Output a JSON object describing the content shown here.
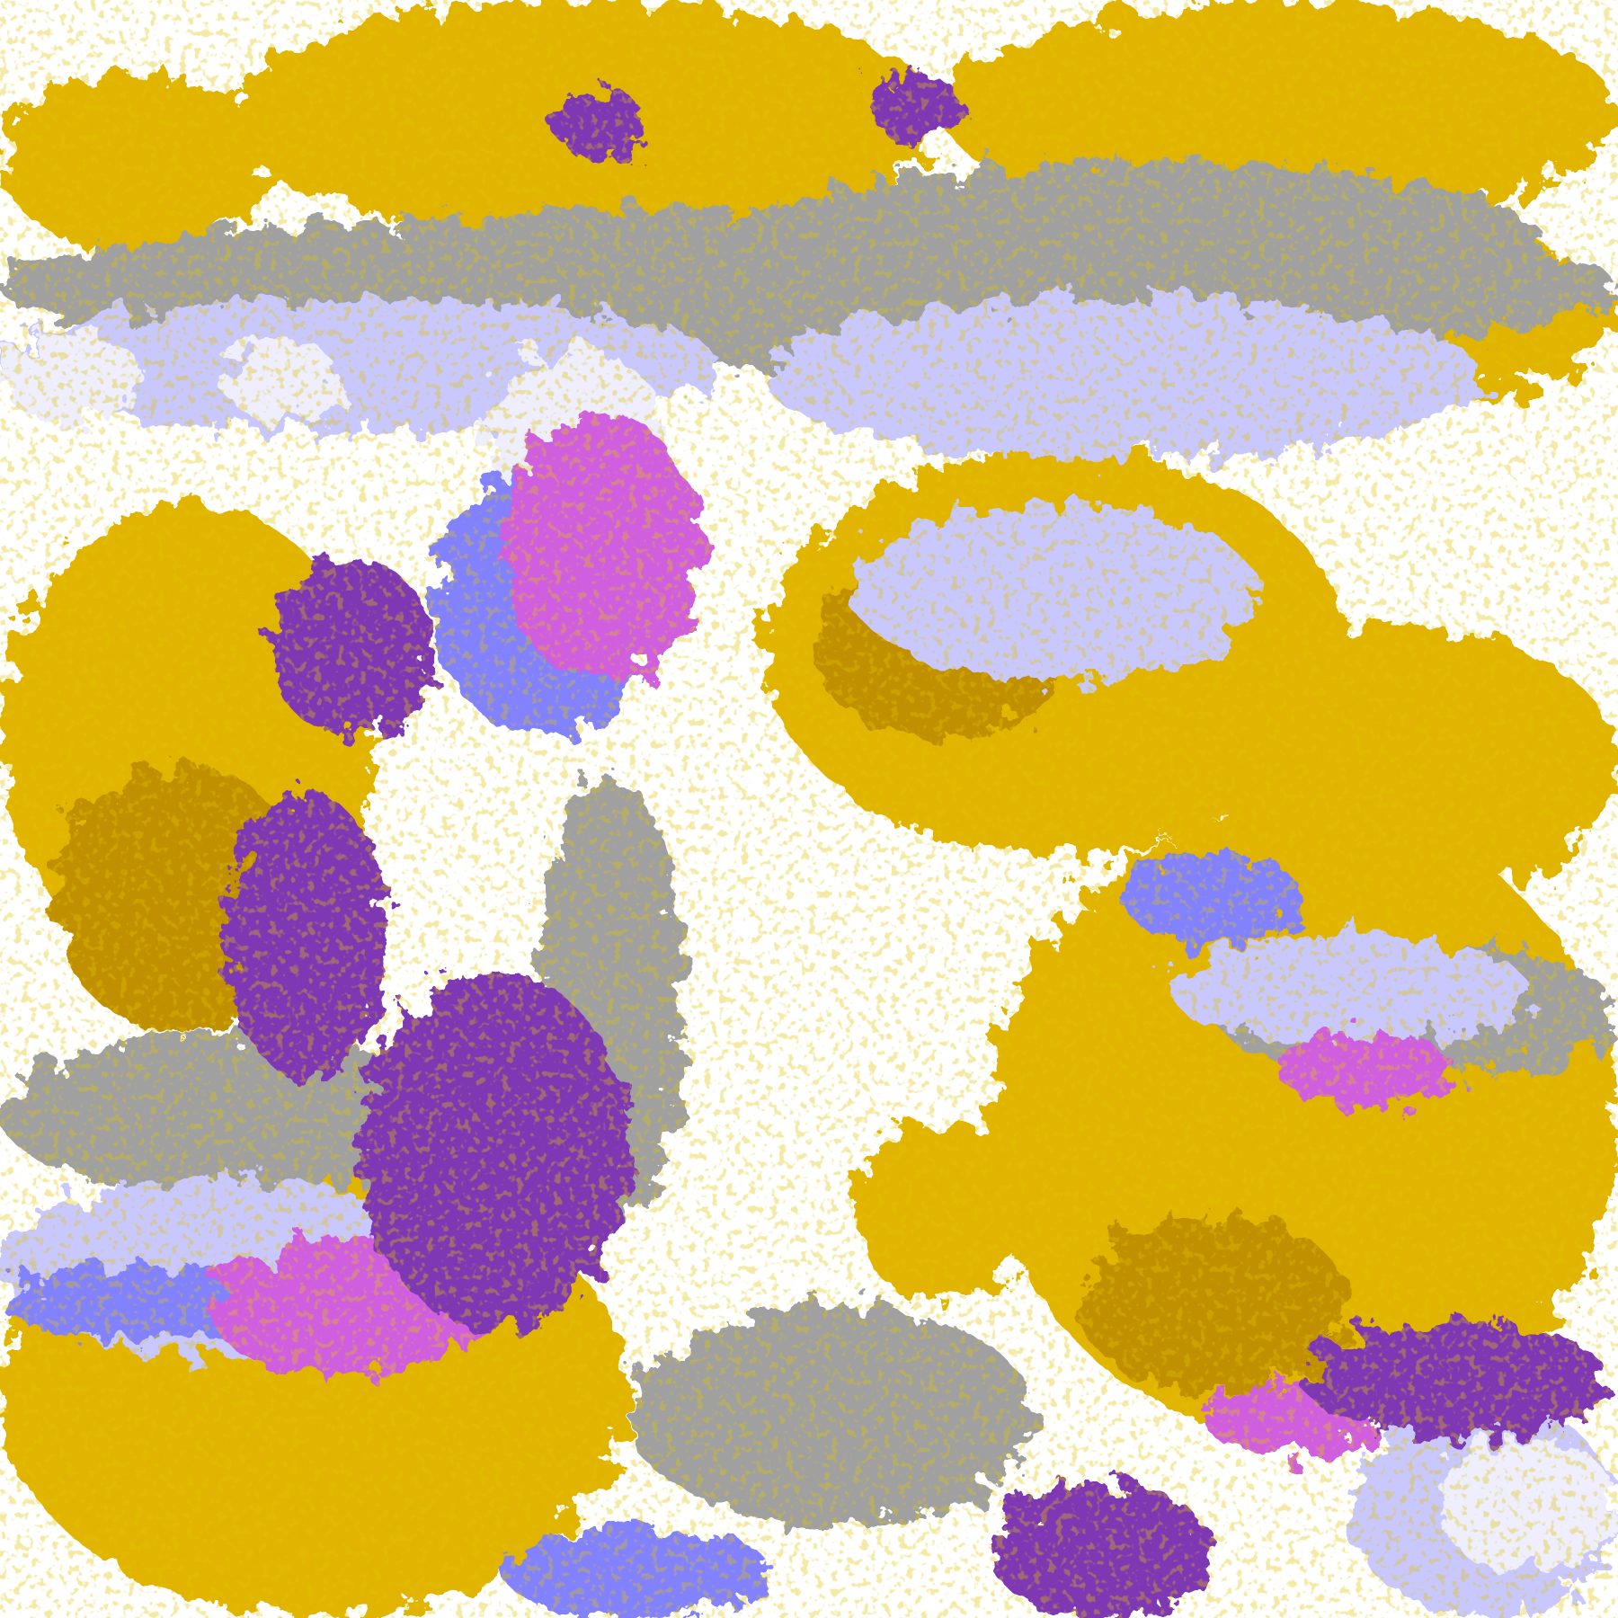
{
  "map": {
    "palette": {
      "clear": "#ffffff",
      "gold": "#e0b400",
      "dark_gold": "#c09000",
      "purple": "#7f38b4",
      "magenta": "#d05ee0",
      "lavender": "#c8c8ff",
      "pale_lavender": "#eeeeff",
      "blue": "#8282ff",
      "gray": "#a0a0a0"
    }
  }
}
